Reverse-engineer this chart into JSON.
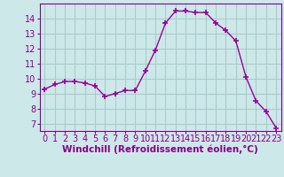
{
  "hours": [
    0,
    1,
    2,
    3,
    4,
    5,
    6,
    7,
    8,
    9,
    10,
    11,
    12,
    13,
    14,
    15,
    16,
    17,
    18,
    19,
    20,
    21,
    22,
    23
  ],
  "values": [
    9.3,
    9.6,
    9.8,
    9.8,
    9.7,
    9.5,
    8.8,
    9.0,
    9.2,
    9.2,
    10.5,
    11.9,
    13.7,
    14.5,
    14.5,
    14.4,
    14.4,
    13.7,
    13.2,
    12.5,
    10.1,
    8.5,
    7.8,
    6.7
  ],
  "line_color": "#990099",
  "marker": "+",
  "markersize": 4,
  "markeredgewidth": 1.2,
  "linewidth": 1.0,
  "bg_color": "#cce8e8",
  "grid_color": "#aacccc",
  "xlabel": "Windchill (Refroidissement éolien,°C)",
  "tick_color": "#880088",
  "xlim": [
    -0.5,
    23.5
  ],
  "ylim": [
    6.5,
    15.0
  ],
  "yticks": [
    7,
    8,
    9,
    10,
    11,
    12,
    13,
    14
  ],
  "xticks": [
    0,
    1,
    2,
    3,
    4,
    5,
    6,
    7,
    8,
    9,
    10,
    11,
    12,
    13,
    14,
    15,
    16,
    17,
    18,
    19,
    20,
    21,
    22,
    23
  ],
  "tick_fontsize": 7.0,
  "xlabel_fontsize": 7.5
}
